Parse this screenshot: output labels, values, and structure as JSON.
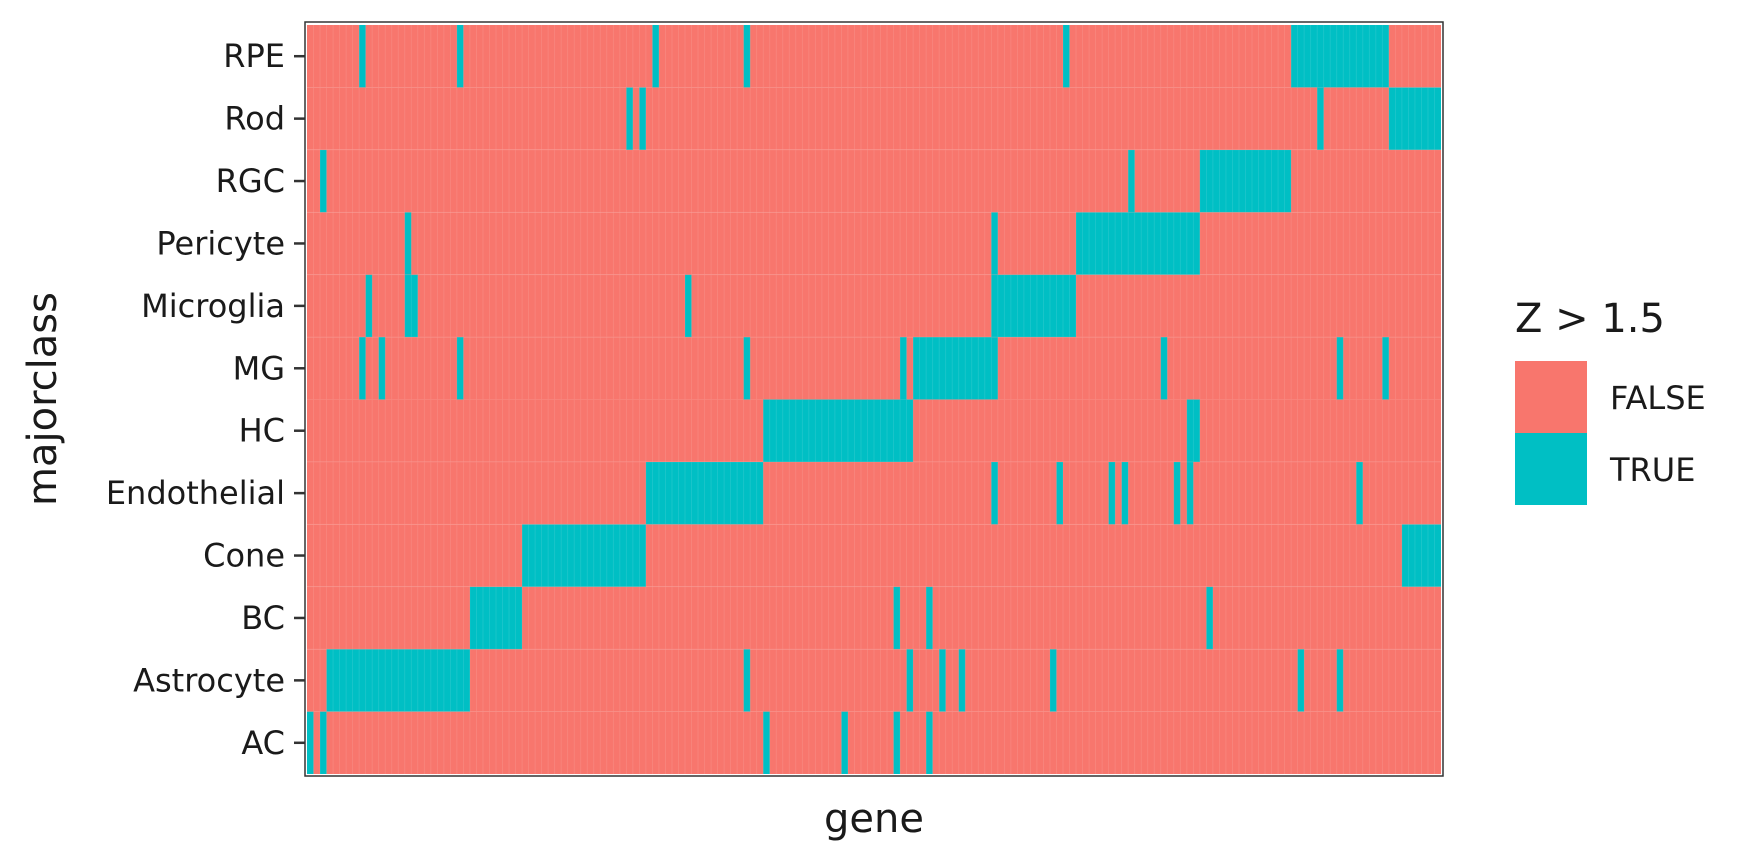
{
  "chart_data": {
    "type": "heatmap",
    "title": "",
    "xlabel": "gene",
    "ylabel": "majorclass",
    "x_tick_labels_shown": false,
    "n_genes": 174,
    "rows": [
      "AC",
      "Astrocyte",
      "BC",
      "Cone",
      "Endothelial",
      "HC",
      "MG",
      "Microglia",
      "Pericyte",
      "RGC",
      "Rod",
      "RPE"
    ],
    "legend": {
      "title": "Z > 1.5",
      "position": "right",
      "entries": [
        {
          "label": "FALSE",
          "color": "#F8766D"
        },
        {
          "label": "TRUE",
          "color": "#00BFC4"
        }
      ]
    },
    "true_cells": {
      "AC": [
        [
          0,
          0
        ],
        [
          2,
          2
        ],
        [
          70,
          70
        ],
        [
          82,
          82
        ],
        [
          90,
          90
        ],
        [
          95,
          95
        ]
      ],
      "Astrocyte": [
        [
          3,
          24
        ],
        [
          67,
          67
        ],
        [
          92,
          92
        ],
        [
          97,
          97
        ],
        [
          100,
          100
        ],
        [
          114,
          114
        ],
        [
          152,
          152
        ],
        [
          158,
          158
        ]
      ],
      "BC": [
        [
          25,
          32
        ],
        [
          90,
          90
        ],
        [
          95,
          95
        ],
        [
          138,
          138
        ]
      ],
      "Cone": [
        [
          33,
          51
        ],
        [
          168,
          173
        ]
      ],
      "Endothelial": [
        [
          52,
          69
        ],
        [
          105,
          105
        ],
        [
          115,
          115
        ],
        [
          123,
          123
        ],
        [
          125,
          125
        ],
        [
          133,
          133
        ],
        [
          135,
          135
        ],
        [
          161,
          161
        ]
      ],
      "HC": [
        [
          70,
          92
        ],
        [
          135,
          136
        ]
      ],
      "MG": [
        [
          8,
          8
        ],
        [
          11,
          11
        ],
        [
          23,
          23
        ],
        [
          67,
          67
        ],
        [
          91,
          91
        ],
        [
          93,
          105
        ],
        [
          131,
          131
        ],
        [
          158,
          158
        ],
        [
          165,
          165
        ]
      ],
      "Microglia": [
        [
          9,
          9
        ],
        [
          15,
          16
        ],
        [
          58,
          58
        ],
        [
          105,
          117
        ]
      ],
      "Pericyte": [
        [
          15,
          15
        ],
        [
          105,
          105
        ],
        [
          118,
          136
        ]
      ],
      "RGC": [
        [
          2,
          2
        ],
        [
          126,
          126
        ],
        [
          137,
          150
        ]
      ],
      "Rod": [
        [
          49,
          49
        ],
        [
          51,
          51
        ],
        [
          155,
          155
        ],
        [
          166,
          173
        ]
      ],
      "RPE": [
        [
          8,
          8
        ],
        [
          23,
          23
        ],
        [
          53,
          53
        ],
        [
          67,
          67
        ],
        [
          116,
          116
        ],
        [
          151,
          165
        ]
      ]
    }
  }
}
